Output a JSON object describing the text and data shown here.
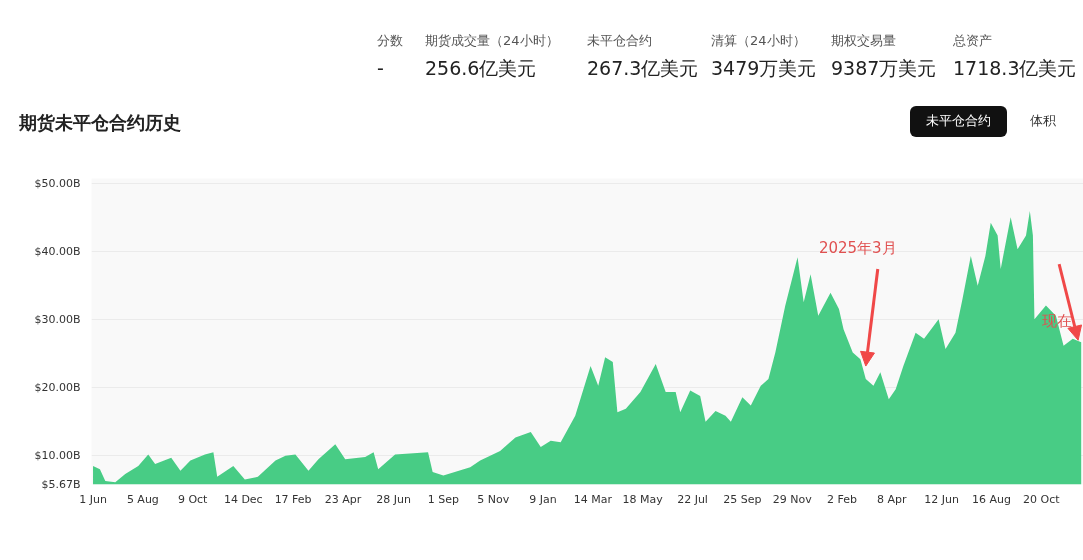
{
  "chart_data": {
    "type": "area",
    "title": "期货未平仓合约历史",
    "annotations": [
      "分数",
      "-",
      "期货成交量（24小时）",
      "256.6亿美元",
      "未平仓合约",
      "267.3亿美元",
      "清算（24小时）",
      "3479万美元",
      "期权交易量",
      "9387万美元",
      "总资产",
      "1718.3亿美元",
      "未平仓合约",
      "体积",
      {
        "text": "2025年3月",
        "x": "2025-03-05",
        "y": 23.1
      },
      {
        "text": "现在",
        "x": "2025-12-07",
        "y": 26.9
      }
    ],
    "x": [
      "2022-06-01",
      "2022-06-10",
      "2022-06-17",
      "2022-06-30",
      "2022-07-13",
      "2022-07-30",
      "2022-08-12",
      "2022-08-21",
      "2022-09-11",
      "2022-09-23",
      "2022-10-06",
      "2022-10-25",
      "2022-11-05",
      "2022-11-10",
      "2022-12-01",
      "2022-12-16",
      "2023-01-02",
      "2023-01-25",
      "2023-02-07",
      "2023-02-20",
      "2023-03-09",
      "2023-03-22",
      "2023-04-13",
      "2023-04-26",
      "2023-05-22",
      "2023-06-02",
      "2023-06-08",
      "2023-06-30",
      "2023-08-12",
      "2023-08-18",
      "2023-09-01",
      "2023-10-06",
      "2023-10-19",
      "2023-11-14",
      "2023-12-04",
      "2023-12-24",
      "2024-01-06",
      "2024-01-19",
      "2024-02-01",
      "2024-02-20",
      "2024-03-11",
      "2024-03-21",
      "2024-03-30",
      "2024-04-09",
      "2024-04-15",
      "2024-04-26",
      "2024-05-15",
      "2024-06-04",
      "2024-06-17",
      "2024-06-30",
      "2024-07-06",
      "2024-07-19",
      "2024-08-01",
      "2024-08-08",
      "2024-08-21",
      "2024-09-03",
      "2024-09-10",
      "2024-09-25",
      "2024-10-06",
      "2024-10-19",
      "2024-10-29",
      "2024-11-07",
      "2024-11-20",
      "2024-12-06",
      "2024-12-14",
      "2024-12-23",
      "2025-01-02",
      "2025-01-18",
      "2025-01-29",
      "2025-02-04",
      "2025-02-16",
      "2025-02-26",
      "2025-03-05",
      "2025-03-15",
      "2025-03-24",
      "2025-04-04",
      "2025-04-13",
      "2025-04-23",
      "2025-05-09",
      "2025-05-20",
      "2025-06-08",
      "2025-06-17",
      "2025-06-30",
      "2025-07-09",
      "2025-07-20",
      "2025-07-29",
      "2025-08-08",
      "2025-08-15",
      "2025-08-24",
      "2025-08-28",
      "2025-09-10",
      "2025-09-19",
      "2025-09-30",
      "2025-10-05",
      "2025-10-09",
      "2025-10-11",
      "2025-10-26",
      "2025-11-08",
      "2025-11-18",
      "2025-11-30",
      "2025-12-11"
    ],
    "series": [
      {
        "color": "#48cc85",
        "values": [
          8.4,
          7.9,
          6.2,
          6.0,
          7.2,
          8.4,
          10.1,
          8.7,
          9.6,
          7.7,
          9.2,
          10.1,
          10.4,
          6.8,
          8.4,
          6.4,
          6.8,
          9.2,
          9.9,
          10.1,
          7.7,
          9.4,
          11.6,
          9.4,
          9.7,
          10.4,
          7.9,
          10.1,
          10.4,
          7.5,
          7.0,
          8.2,
          9.2,
          10.6,
          12.6,
          13.4,
          11.2,
          12.1,
          11.9,
          15.8,
          23.1,
          20.2,
          24.4,
          23.7,
          16.3,
          16.8,
          19.3,
          23.4,
          19.3,
          19.3,
          16.3,
          19.5,
          18.7,
          14.9,
          16.5,
          15.8,
          14.9,
          18.5,
          17.3,
          20.2,
          21.2,
          25.1,
          32.0,
          39.1,
          32.5,
          36.6,
          30.5,
          33.9,
          31.5,
          28.5,
          25.1,
          24.1,
          21.2,
          20.2,
          22.2,
          18.2,
          19.7,
          23.1,
          28.0,
          27.1,
          30.0,
          25.6,
          28.0,
          32.9,
          39.3,
          34.9,
          39.3,
          44.2,
          42.3,
          37.4,
          45.0,
          40.3,
          42.3,
          45.9,
          42.3,
          30.0,
          32.0,
          30.5,
          26.1,
          27.1,
          26.6
        ]
      }
    ],
    "xlim": [
      "2022-05-30",
      "2025-12-14"
    ],
    "ylim": [
      5.67,
      50.7
    ],
    "xticks": [
      {
        "value": "2022-06-01",
        "label": "1 Jun"
      },
      {
        "value": "2022-08-05",
        "label": "5 Aug"
      },
      {
        "value": "2022-10-09",
        "label": "9 Oct"
      },
      {
        "value": "2022-12-14",
        "label": "14 Dec"
      },
      {
        "value": "2023-02-17",
        "label": "17 Feb"
      },
      {
        "value": "2023-04-23",
        "label": "23 Apr"
      },
      {
        "value": "2023-06-28",
        "label": "28 Jun"
      },
      {
        "value": "2023-09-01",
        "label": "1 Sep"
      },
      {
        "value": "2023-11-05",
        "label": "5 Nov"
      },
      {
        "value": "2024-01-09",
        "label": "9 Jan"
      },
      {
        "value": "2024-03-14",
        "label": "14 Mar"
      },
      {
        "value": "2024-05-18",
        "label": "18 May"
      },
      {
        "value": "2024-07-22",
        "label": "22 Jul"
      },
      {
        "value": "2024-09-25",
        "label": "25 Sep"
      },
      {
        "value": "2024-11-29",
        "label": "29 Nov"
      },
      {
        "value": "2025-02-02",
        "label": "2 Feb"
      },
      {
        "value": "2025-04-08",
        "label": "8 Apr"
      },
      {
        "value": "2025-06-12",
        "label": "12 Jun"
      },
      {
        "value": "2025-08-16",
        "label": "16 Aug"
      },
      {
        "value": "2025-10-20",
        "label": "20 Oct"
      }
    ],
    "yticks": [
      {
        "value": 5.67,
        "label": "$5.67B"
      },
      {
        "value": 10,
        "label": "$10.00B"
      },
      {
        "value": 20,
        "label": "$20.00B"
      },
      {
        "value": 30,
        "label": "$30.00B"
      },
      {
        "value": 40,
        "label": "$40.00B"
      },
      {
        "value": 50,
        "label": "$50.00B"
      }
    ],
    "grid": "y"
  }
}
